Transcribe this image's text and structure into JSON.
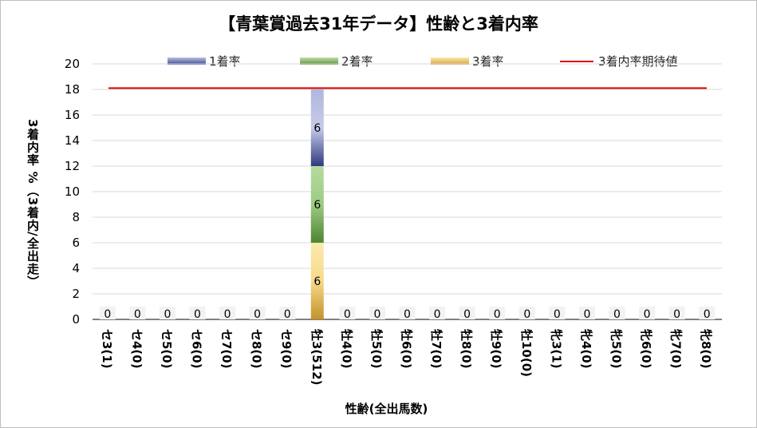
{
  "chart_data": {
    "type": "bar",
    "stacked": true,
    "title": "【青葉賞過去31年データ】性齢と3着内率",
    "xlabel": "性齢(全出馬数)",
    "ylabel": "3着内率 %（3着内/全出走）",
    "ylim": [
      0,
      20
    ],
    "yticks": [
      0,
      2,
      4,
      6,
      8,
      10,
      12,
      14,
      16,
      18,
      20
    ],
    "grid": true,
    "legend_position": "top",
    "categories": [
      "セ3(1)",
      "セ4(0)",
      "セ5(0)",
      "セ6(0)",
      "セ7(0)",
      "セ8(0)",
      "セ9(0)",
      "牡3(512)",
      "牡4(0)",
      "牡5(0)",
      "牡6(0)",
      "牡7(0)",
      "牡8(0)",
      "牡9(0)",
      "牡10(0)",
      "牝3(1)",
      "牝4(0)",
      "牝5(0)",
      "牝6(0)",
      "牝7(0)",
      "牝8(0)"
    ],
    "series": [
      {
        "name": "3着率",
        "color": "#d4a537",
        "values": [
          0,
          0,
          0,
          0,
          0,
          0,
          0,
          6,
          0,
          0,
          0,
          0,
          0,
          0,
          0,
          0,
          0,
          0,
          0,
          0,
          0
        ]
      },
      {
        "name": "2着率",
        "color": "#6a9a4a",
        "values": [
          0,
          0,
          0,
          0,
          0,
          0,
          0,
          6,
          0,
          0,
          0,
          0,
          0,
          0,
          0,
          0,
          0,
          0,
          0,
          0,
          0
        ]
      },
      {
        "name": "1着率",
        "color": "#4a55a0",
        "values": [
          0,
          0,
          0,
          0,
          0,
          0,
          0,
          6,
          0,
          0,
          0,
          0,
          0,
          0,
          0,
          0,
          0,
          0,
          0,
          0,
          0
        ]
      }
    ],
    "bar_labels": [
      "0",
      "0",
      "0",
      "0",
      "0",
      "0",
      "0",
      "",
      "0",
      "0",
      "0",
      "0",
      "0",
      "0",
      "0",
      "0",
      "0",
      "0",
      "0",
      "0",
      "0"
    ],
    "reference_line": {
      "name": "3着内率期待値",
      "value": 18.1,
      "color": "#e00000"
    }
  },
  "legend": {
    "item1": "1着率",
    "item2": "2着率",
    "item3": "3着率",
    "item4": "3着内率期待値"
  }
}
